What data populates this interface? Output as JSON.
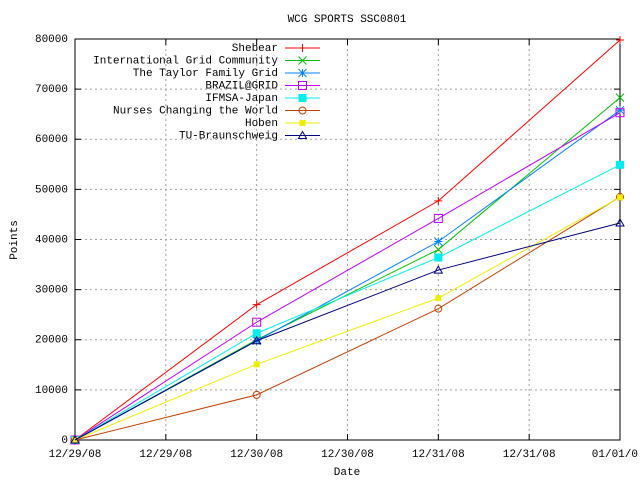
{
  "chart_data": {
    "type": "line",
    "title": "WCG SPORTS SSC0801",
    "xlabel": "Date",
    "ylabel": "Points",
    "x": [
      0,
      1,
      2,
      3
    ],
    "xlim": [
      0,
      3
    ],
    "xticks": [
      {
        "value": 0,
        "label": "12/29/08"
      },
      {
        "value": 0.5,
        "label": "12/29/08"
      },
      {
        "value": 1,
        "label": "12/30/08"
      },
      {
        "value": 1.5,
        "label": "12/30/08"
      },
      {
        "value": 2,
        "label": "12/31/08"
      },
      {
        "value": 2.5,
        "label": "12/31/08"
      },
      {
        "value": 3,
        "label": "01/01/0"
      }
    ],
    "ylim": [
      0,
      80000
    ],
    "yticks": [
      0,
      10000,
      20000,
      30000,
      40000,
      50000,
      60000,
      70000,
      80000
    ],
    "grid": true,
    "legend": "top-right",
    "series": [
      {
        "name": "Shebear",
        "color": "#ff0000",
        "marker": "plus",
        "values": [
          0,
          27000,
          47700,
          79800
        ]
      },
      {
        "name": "International Grid Community",
        "color": "#00c000",
        "marker": "cross",
        "values": [
          0,
          20000,
          38000,
          68300
        ]
      },
      {
        "name": "The Taylor Family Grid",
        "color": "#0080ff",
        "marker": "star",
        "values": [
          0,
          19800,
          39600,
          65800
        ]
      },
      {
        "name": "BRAZIL@GRID",
        "color": "#c000ff",
        "marker": "square",
        "values": [
          0,
          23500,
          44200,
          65300
        ]
      },
      {
        "name": "IFMSA-Japan",
        "color": "#00eeee",
        "marker": "filled-square",
        "values": [
          0,
          21300,
          36400,
          54900
        ]
      },
      {
        "name": "Nurses Changing the World",
        "color": "#c04000",
        "marker": "circle",
        "values": [
          0,
          9000,
          26200,
          48500
        ]
      },
      {
        "name": "Hoben",
        "color": "#eeee00",
        "marker": "small-filled-square",
        "values": [
          0,
          15100,
          28300,
          48400
        ]
      },
      {
        "name": "TU-Braunschweig",
        "color": "#000080",
        "marker": "triangle",
        "values": [
          0,
          19800,
          33900,
          43300
        ]
      }
    ]
  }
}
